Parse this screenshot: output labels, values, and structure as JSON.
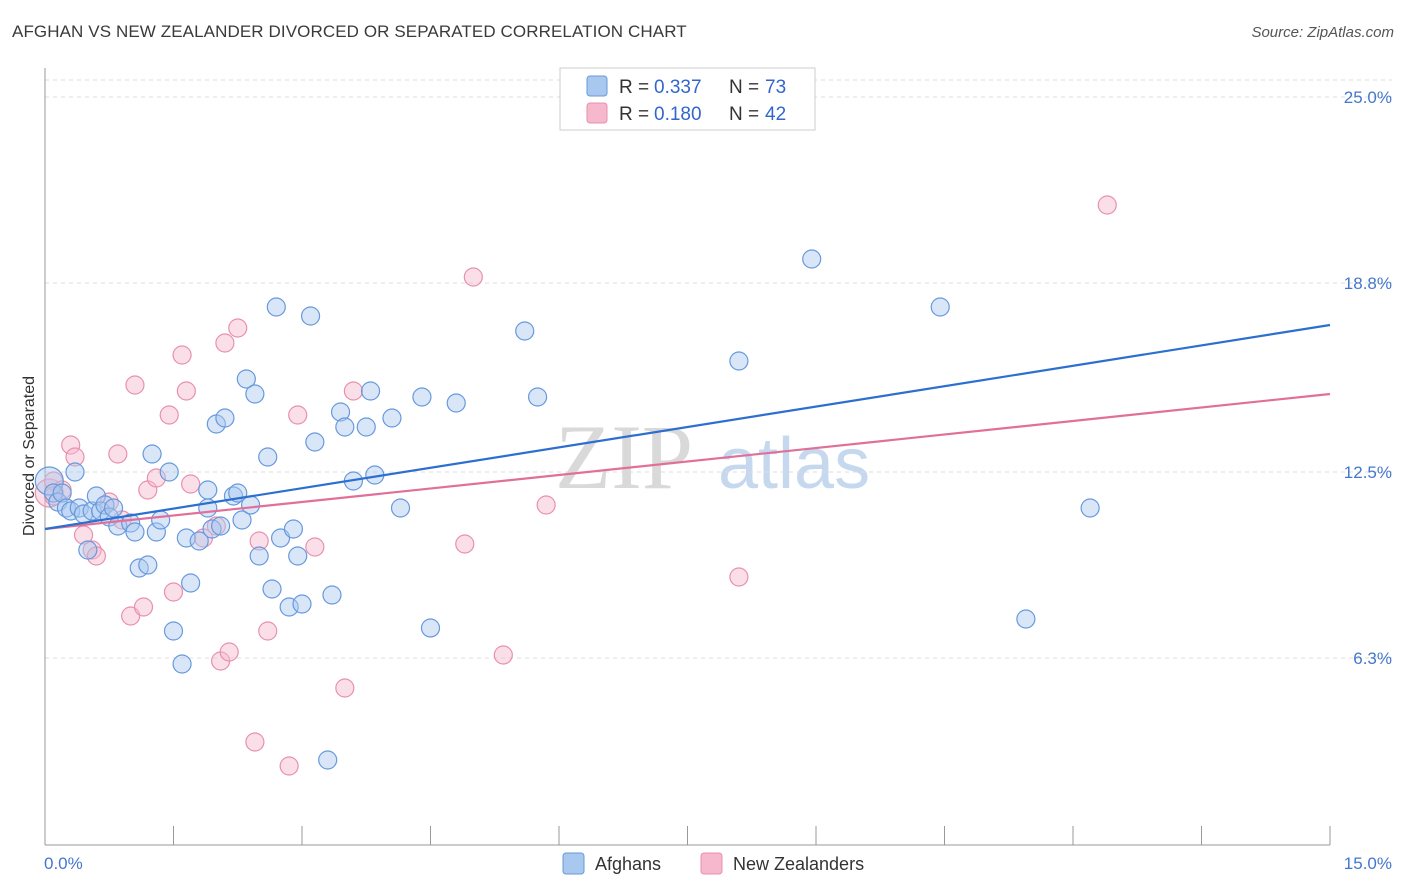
{
  "header": {
    "title": "AFGHAN VS NEW ZEALANDER DIVORCED OR SEPARATED CORRELATION CHART",
    "source": "Source: ZipAtlas.com"
  },
  "watermark": {
    "zip": "ZIP",
    "atlas": "atlas"
  },
  "legend_top": {
    "rows": [
      {
        "r_label": "R =",
        "r_value": "0.337",
        "n_label": "N =",
        "n_value": "73"
      },
      {
        "r_label": "R =",
        "r_value": "0.180",
        "n_label": "N =",
        "n_value": "42"
      }
    ]
  },
  "legend_bottom": {
    "items": [
      "Afghans",
      "New Zealanders"
    ]
  },
  "colors": {
    "blue_fill": "#a8c8f0",
    "blue_stroke": "#6699dd",
    "blue_line": "#2b6fd0",
    "pink_fill": "#f6b8cc",
    "pink_stroke": "#e890ae",
    "pink_line": "#e07099",
    "grid": "#dddddd",
    "tick_text": "#4477cc"
  },
  "chart_data": {
    "type": "scatter",
    "xlabel": "",
    "ylabel": "Divorced or Separated",
    "xlim": [
      0,
      15
    ],
    "ylim": [
      0,
      25
    ],
    "x_tick_labels": [
      "0.0%",
      "15.0%"
    ],
    "y_ticks": [
      6.3,
      12.5,
      18.8,
      25.0
    ],
    "y_tick_labels": [
      "6.3%",
      "12.5%",
      "18.8%",
      "25.0%"
    ],
    "grid": "horizontal dashed",
    "legend_position": "top-center",
    "series": [
      {
        "name": "Afghans",
        "R": 0.337,
        "N": 73,
        "trend": {
          "x": [
            0,
            15
          ],
          "y": [
            10.6,
            17.4
          ]
        },
        "points": [
          [
            0.05,
            12.2
          ],
          [
            0.1,
            11.8
          ],
          [
            0.15,
            11.5
          ],
          [
            0.2,
            11.8
          ],
          [
            0.25,
            11.3
          ],
          [
            0.3,
            11.2
          ],
          [
            0.35,
            12.5
          ],
          [
            0.4,
            11.3
          ],
          [
            0.45,
            11.1
          ],
          [
            0.5,
            9.9
          ],
          [
            0.55,
            11.2
          ],
          [
            0.6,
            11.7
          ],
          [
            0.65,
            11.2
          ],
          [
            0.7,
            11.4
          ],
          [
            0.75,
            11.0
          ],
          [
            0.8,
            11.3
          ],
          [
            0.85,
            10.7
          ],
          [
            1.0,
            10.8
          ],
          [
            1.05,
            10.5
          ],
          [
            1.1,
            9.3
          ],
          [
            1.2,
            9.4
          ],
          [
            1.25,
            13.1
          ],
          [
            1.3,
            10.5
          ],
          [
            1.35,
            10.9
          ],
          [
            1.45,
            12.5
          ],
          [
            1.5,
            7.2
          ],
          [
            1.6,
            6.1
          ],
          [
            1.65,
            10.3
          ],
          [
            1.7,
            8.8
          ],
          [
            1.8,
            10.2
          ],
          [
            1.9,
            11.3
          ],
          [
            1.9,
            11.9
          ],
          [
            1.95,
            10.6
          ],
          [
            2.0,
            14.1
          ],
          [
            2.05,
            10.7
          ],
          [
            2.1,
            14.3
          ],
          [
            2.2,
            11.7
          ],
          [
            2.25,
            11.8
          ],
          [
            2.3,
            10.9
          ],
          [
            2.35,
            15.6
          ],
          [
            2.4,
            11.4
          ],
          [
            2.45,
            15.1
          ],
          [
            2.5,
            9.7
          ],
          [
            2.6,
            13.0
          ],
          [
            2.65,
            8.6
          ],
          [
            2.7,
            18.0
          ],
          [
            2.75,
            10.3
          ],
          [
            2.85,
            8.0
          ],
          [
            2.9,
            10.6
          ],
          [
            2.95,
            9.7
          ],
          [
            3.0,
            8.1
          ],
          [
            3.1,
            17.7
          ],
          [
            3.15,
            13.5
          ],
          [
            3.3,
            2.9
          ],
          [
            3.35,
            8.4
          ],
          [
            3.45,
            14.5
          ],
          [
            3.5,
            14.0
          ],
          [
            3.6,
            12.2
          ],
          [
            3.75,
            14.0
          ],
          [
            3.8,
            15.2
          ],
          [
            3.85,
            12.4
          ],
          [
            4.05,
            14.3
          ],
          [
            4.15,
            11.3
          ],
          [
            4.4,
            15.0
          ],
          [
            4.5,
            7.3
          ],
          [
            4.8,
            14.8
          ],
          [
            5.6,
            17.2
          ],
          [
            5.75,
            15.0
          ],
          [
            8.1,
            16.2
          ],
          [
            8.95,
            19.6
          ],
          [
            10.45,
            18.0
          ],
          [
            11.45,
            7.6
          ],
          [
            12.2,
            11.3
          ]
        ]
      },
      {
        "name": "New Zealanders",
        "R": 0.18,
        "N": 42,
        "trend": {
          "x": [
            0,
            15
          ],
          "y": [
            10.6,
            15.1
          ]
        },
        "points": [
          [
            0.05,
            11.8
          ],
          [
            0.1,
            12.2
          ],
          [
            0.2,
            11.9
          ],
          [
            0.3,
            13.4
          ],
          [
            0.35,
            13.0
          ],
          [
            0.45,
            10.4
          ],
          [
            0.55,
            9.9
          ],
          [
            0.6,
            9.7
          ],
          [
            0.75,
            11.5
          ],
          [
            0.85,
            13.1
          ],
          [
            0.9,
            10.9
          ],
          [
            1.0,
            7.7
          ],
          [
            1.05,
            15.4
          ],
          [
            1.15,
            8.0
          ],
          [
            1.2,
            11.9
          ],
          [
            1.3,
            12.3
          ],
          [
            1.45,
            14.4
          ],
          [
            1.5,
            8.5
          ],
          [
            1.6,
            16.4
          ],
          [
            1.65,
            15.2
          ],
          [
            1.7,
            12.1
          ],
          [
            1.85,
            10.3
          ],
          [
            2.0,
            10.7
          ],
          [
            2.05,
            6.2
          ],
          [
            2.1,
            16.8
          ],
          [
            2.15,
            6.5
          ],
          [
            2.25,
            17.3
          ],
          [
            2.45,
            3.5
          ],
          [
            2.5,
            10.2
          ],
          [
            2.6,
            7.2
          ],
          [
            2.85,
            2.7
          ],
          [
            2.95,
            14.4
          ],
          [
            3.15,
            10.0
          ],
          [
            3.5,
            5.3
          ],
          [
            3.6,
            15.2
          ],
          [
            4.9,
            10.1
          ],
          [
            5.0,
            19.0
          ],
          [
            5.35,
            6.4
          ],
          [
            5.85,
            11.4
          ],
          [
            8.1,
            9.0
          ],
          [
            12.4,
            21.4
          ],
          [
            0.1,
            11.7
          ]
        ]
      }
    ]
  }
}
